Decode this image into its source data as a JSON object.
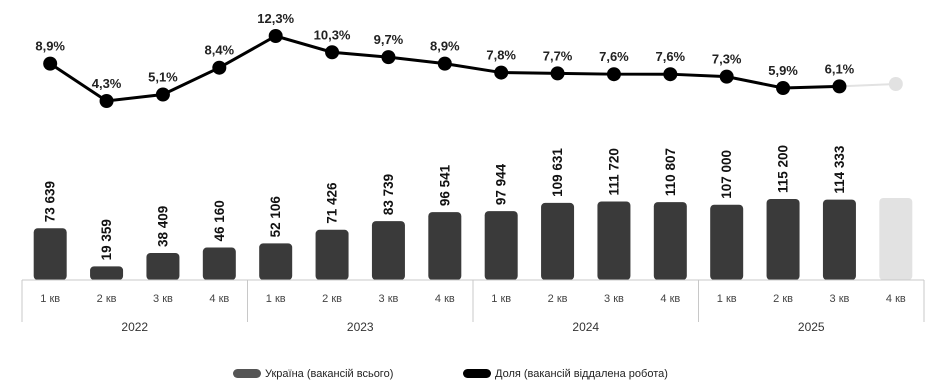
{
  "chart_data": {
    "type": "bar",
    "categories": [
      "1 кв",
      "2 кв",
      "3 кв",
      "4 кв",
      "1 кв",
      "2 кв",
      "3 кв",
      "4 кв",
      "1 кв",
      "2 кв",
      "3 кв",
      "4 кв",
      "1 кв",
      "2 кв",
      "3 кв",
      "4 кв"
    ],
    "groups": [
      {
        "label": "2022",
        "start": 0,
        "end": 3
      },
      {
        "label": "2023",
        "start": 4,
        "end": 7
      },
      {
        "label": "2024",
        "start": 8,
        "end": 11
      },
      {
        "label": "2025",
        "start": 12,
        "end": 15
      }
    ],
    "series": [
      {
        "name": "Україна (вакансій всього)",
        "type": "bar",
        "values": [
          73639,
          19359,
          38409,
          46160,
          52106,
          71426,
          83739,
          96541,
          97944,
          109631,
          111720,
          110807,
          107000,
          115200,
          114333,
          null
        ],
        "labels": [
          "73 639",
          "19 359",
          "38 409",
          "46 160",
          "52 106",
          "71 426",
          "83 739",
          "96 541",
          "97 944",
          "109 631",
          "111 720",
          "110 807",
          "107 000",
          "115 200",
          "114 333",
          ""
        ],
        "color": "#3a3a3a",
        "placeholder_color": "#e2e2e2"
      },
      {
        "name": "Доля (вакансій віддалена робота)",
        "type": "line",
        "values": [
          8.9,
          4.3,
          5.1,
          8.4,
          12.3,
          10.3,
          9.7,
          8.9,
          7.8,
          7.7,
          7.6,
          7.6,
          7.3,
          5.9,
          6.1,
          null
        ],
        "labels": [
          "8,9%",
          "4,3%",
          "5,1%",
          "8,4%",
          "12,3%",
          "10,3%",
          "9,7%",
          "8,9%",
          "7,8%",
          "7,7%",
          "7,6%",
          "7,6%",
          "7,3%",
          "5,9%",
          "6,1%",
          ""
        ],
        "color": "#000000",
        "placeholder_color": "#e2e2e2"
      }
    ],
    "legend_position": "bottom-center",
    "grid": false
  },
  "legend": {
    "items": [
      {
        "label": "Україна (вакансій всього)",
        "color": "#555555"
      },
      {
        "label": "Доля (вакансій віддалена робота)",
        "color": "#000000"
      }
    ]
  }
}
